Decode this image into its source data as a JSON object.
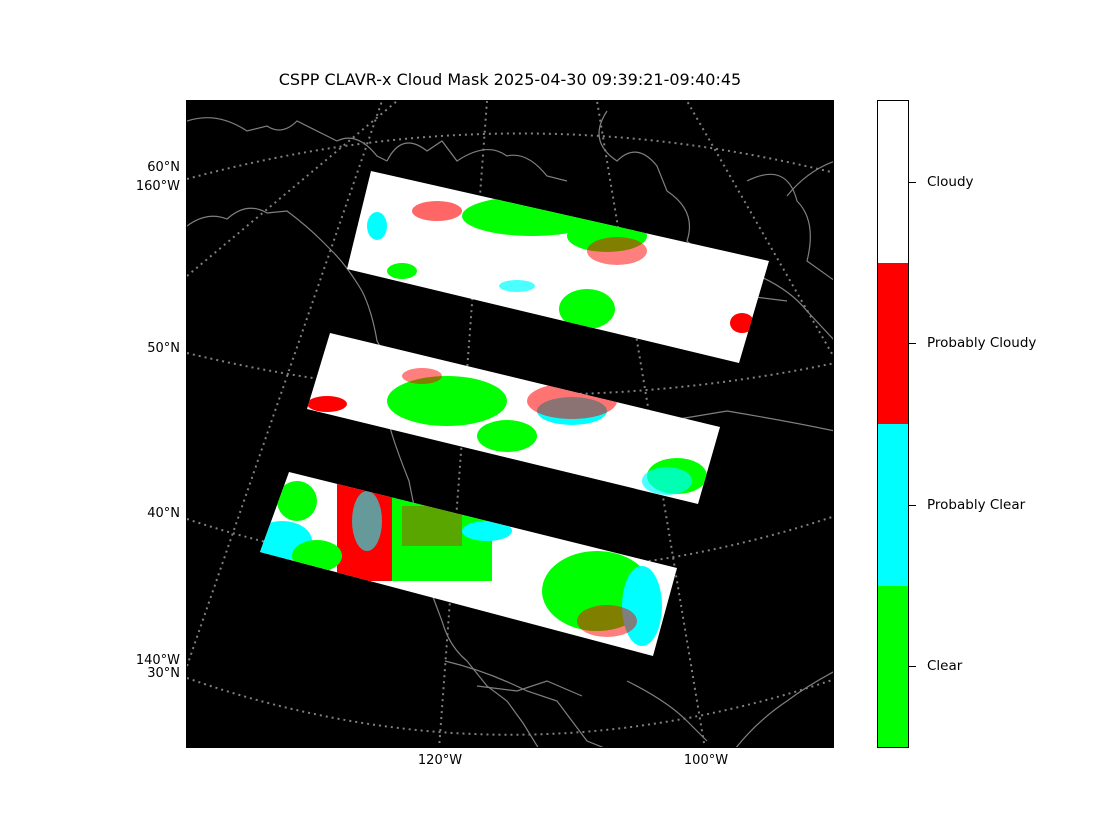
{
  "title": "CSPP CLAVR-x Cloud Mask 2025-04-30 09:39:21-09:40:45",
  "map": {
    "background": "#000000",
    "coastline_color": "#808080",
    "gridline_style": "dotted",
    "gridline_color": "#808080",
    "lat_labels": [
      "60°N",
      "50°N",
      "40°N",
      "30°N"
    ],
    "lon_labels_left": [
      "160°W",
      "140°W"
    ],
    "lon_labels_bottom": [
      "120°W",
      "100°W"
    ],
    "swaths": 3
  },
  "colorbar": {
    "categories": [
      {
        "label": "Cloudy",
        "color": "#ffffff"
      },
      {
        "label": "Probably Cloudy",
        "color": "#ff0000"
      },
      {
        "label": "Probably Clear",
        "color": "#00ffff"
      },
      {
        "label": "Clear",
        "color": "#00ff00"
      }
    ]
  }
}
